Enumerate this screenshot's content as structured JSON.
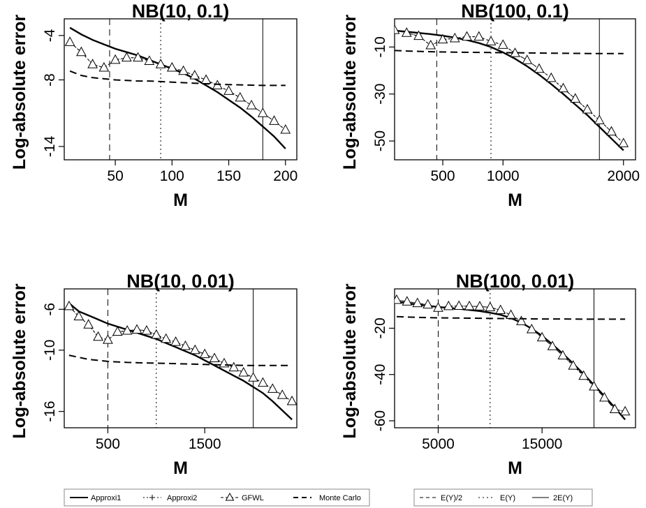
{
  "chart_data": [
    {
      "type": "line",
      "title": "NB(10, 0.1)",
      "xlabel": "M",
      "ylabel": "Log-absolute error",
      "xlim": [
        5,
        210
      ],
      "ylim": [
        -15.2,
        -2.5
      ],
      "xticks": [
        50,
        100,
        150,
        200
      ],
      "yticks": [
        -4,
        -8,
        -14
      ],
      "vlines": {
        "E(Y)/2": 45,
        "E(Y)": 90,
        "2E(Y)": 180
      },
      "series": [
        {
          "name": "Approxi1",
          "x": [
            10,
            20,
            30,
            40,
            50,
            60,
            70,
            80,
            90,
            100,
            110,
            120,
            130,
            140,
            150,
            160,
            170,
            180,
            190,
            200
          ],
          "values": [
            -3.3,
            -3.9,
            -4.4,
            -4.8,
            -5.2,
            -5.5,
            -5.8,
            -6.2,
            -6.6,
            -7.0,
            -7.4,
            -7.9,
            -8.5,
            -9.1,
            -9.8,
            -10.5,
            -11.3,
            -12.2,
            -13.1,
            -14.2
          ]
        },
        {
          "name": "Approxi2",
          "x": [
            10,
            20,
            30,
            40,
            50,
            60,
            70,
            80,
            90,
            100,
            110,
            120,
            130,
            140,
            150,
            160,
            170,
            180,
            190,
            200
          ],
          "values": [
            -4.6,
            -5.5,
            -6.6,
            -6.9,
            -6.2,
            -6.0,
            -6.0,
            -6.3,
            -6.6,
            -6.9,
            -7.2,
            -7.6,
            -8.0,
            -8.5,
            -9.0,
            -9.6,
            -10.3,
            -11.0,
            -11.7,
            -12.5
          ]
        },
        {
          "name": "GFWL",
          "x": [
            10,
            20,
            30,
            40,
            50,
            60,
            70,
            80,
            90,
            100,
            110,
            120,
            130,
            140,
            150,
            160,
            170,
            180,
            190,
            200
          ],
          "values": [
            -4.6,
            -5.5,
            -6.6,
            -6.9,
            -6.2,
            -6.0,
            -6.0,
            -6.3,
            -6.6,
            -6.9,
            -7.2,
            -7.6,
            -8.0,
            -8.5,
            -9.0,
            -9.6,
            -10.3,
            -11.0,
            -11.7,
            -12.5
          ]
        },
        {
          "name": "Monte Carlo",
          "x": [
            10,
            20,
            30,
            40,
            50,
            60,
            70,
            80,
            90,
            100,
            120,
            140,
            160,
            180,
            200
          ],
          "values": [
            -7.2,
            -7.6,
            -7.8,
            -7.9,
            -8.0,
            -8.05,
            -8.1,
            -8.1,
            -8.15,
            -8.2,
            -8.3,
            -8.4,
            -8.45,
            -8.5,
            -8.5
          ]
        }
      ]
    },
    {
      "type": "line",
      "title": "NB(100, 0.1)",
      "xlabel": "M",
      "ylabel": "Log-absolute error",
      "xlim": [
        100,
        2100
      ],
      "ylim": [
        -58,
        2
      ],
      "xticks": [
        500,
        1000,
        2000
      ],
      "yticks": [
        -10,
        -30,
        -50
      ],
      "vlines": {
        "E(Y)/2": 450,
        "E(Y)": 900,
        "2E(Y)": 1800
      },
      "series": [
        {
          "name": "Approxi1",
          "x": [
            100,
            200,
            300,
            400,
            500,
            600,
            700,
            800,
            900,
            1000,
            1100,
            1200,
            1300,
            1400,
            1500,
            1600,
            1700,
            1800,
            1900,
            2000
          ],
          "values": [
            -3.0,
            -3.5,
            -4.0,
            -4.5,
            -5.2,
            -6.0,
            -7.0,
            -8.3,
            -10.0,
            -12.3,
            -15.0,
            -18.2,
            -21.8,
            -25.8,
            -30.0,
            -34.5,
            -39.0,
            -44.0,
            -49.0,
            -54.0
          ]
        },
        {
          "name": "Approxi2",
          "x": [
            100,
            200,
            300,
            400,
            500,
            600,
            700,
            800,
            900,
            1000,
            1100,
            1200,
            1300,
            1400,
            1500,
            1600,
            1700,
            1800,
            1900,
            2000
          ],
          "values": [
            -2.8,
            -4.0,
            -5.3,
            -9.3,
            -6.8,
            -6.3,
            -5.6,
            -5.6,
            -7.6,
            -9.1,
            -12.6,
            -15.6,
            -19.3,
            -23.2,
            -27.6,
            -32.0,
            -36.6,
            -41.2,
            -46.0,
            -51.0
          ]
        },
        {
          "name": "GFWL",
          "x": [
            100,
            200,
            300,
            400,
            500,
            600,
            700,
            800,
            900,
            1000,
            1100,
            1200,
            1300,
            1400,
            1500,
            1600,
            1700,
            1800,
            1900,
            2000
          ],
          "values": [
            -2.8,
            -4.0,
            -5.3,
            -9.3,
            -6.8,
            -6.3,
            -5.6,
            -5.6,
            -7.6,
            -9.1,
            -12.6,
            -15.6,
            -19.3,
            -23.2,
            -27.6,
            -32.0,
            -36.6,
            -41.2,
            -46.0,
            -51.0
          ]
        },
        {
          "name": "Monte Carlo",
          "x": [
            100,
            200,
            400,
            600,
            800,
            1000,
            1200,
            1400,
            1600,
            1800,
            2000
          ],
          "values": [
            -11.5,
            -11.7,
            -12.0,
            -12.2,
            -12.3,
            -12.4,
            -12.5,
            -12.6,
            -12.7,
            -12.8,
            -12.8
          ]
        }
      ]
    },
    {
      "type": "line",
      "title": "NB(10, 0.01)",
      "xlabel": "M",
      "ylabel": "Log-absolute error",
      "xlim": [
        50,
        2450
      ],
      "ylim": [
        -17.6,
        -4.0
      ],
      "xticks": [
        500,
        1500
      ],
      "yticks": [
        -6,
        -10,
        -16
      ],
      "vlines": {
        "E(Y)/2": 500,
        "E(Y)": 1000,
        "2E(Y)": 2000
      },
      "series": [
        {
          "name": "Approxi1",
          "x": [
            100,
            200,
            300,
            400,
            500,
            600,
            700,
            800,
            900,
            1000,
            1100,
            1200,
            1300,
            1400,
            1500,
            1600,
            1700,
            1800,
            1900,
            2000,
            2100,
            2200,
            2300,
            2400
          ],
          "values": [
            -5.4,
            -6.2,
            -6.6,
            -7.0,
            -7.4,
            -7.7,
            -8.0,
            -8.3,
            -8.6,
            -8.9,
            -9.3,
            -9.7,
            -10.1,
            -10.5,
            -11.0,
            -11.5,
            -12.0,
            -12.5,
            -13.0,
            -13.6,
            -14.2,
            -15.0,
            -15.9,
            -16.8
          ]
        },
        {
          "name": "Approxi2",
          "x": [
            100,
            200,
            300,
            400,
            500,
            600,
            700,
            800,
            900,
            1000,
            1100,
            1200,
            1300,
            1400,
            1500,
            1600,
            1700,
            1800,
            1900,
            2000,
            2100,
            2200,
            2300,
            2400
          ],
          "values": [
            -5.7,
            -6.7,
            -7.5,
            -8.7,
            -9.0,
            -8.2,
            -8.1,
            -8.0,
            -8.1,
            -8.5,
            -8.9,
            -9.2,
            -9.6,
            -10.0,
            -10.4,
            -10.8,
            -11.3,
            -11.7,
            -12.2,
            -12.7,
            -13.2,
            -13.8,
            -14.4,
            -15.0
          ]
        },
        {
          "name": "GFWL",
          "x": [
            100,
            200,
            300,
            400,
            500,
            600,
            700,
            800,
            900,
            1000,
            1100,
            1200,
            1300,
            1400,
            1500,
            1600,
            1700,
            1800,
            1900,
            2000,
            2100,
            2200,
            2300,
            2400
          ],
          "values": [
            -5.7,
            -6.7,
            -7.5,
            -8.7,
            -9.0,
            -8.2,
            -8.1,
            -8.0,
            -8.1,
            -8.5,
            -8.9,
            -9.2,
            -9.6,
            -10.0,
            -10.4,
            -10.8,
            -11.3,
            -11.7,
            -12.2,
            -12.7,
            -13.2,
            -13.8,
            -14.4,
            -15.0
          ]
        },
        {
          "name": "Monte Carlo",
          "x": [
            100,
            300,
            500,
            700,
            900,
            1100,
            1300,
            1500,
            1700,
            1900,
            2100,
            2400
          ],
          "values": [
            -10.5,
            -10.9,
            -11.1,
            -11.2,
            -11.25,
            -11.3,
            -11.35,
            -11.4,
            -11.45,
            -11.5,
            -11.5,
            -11.5
          ]
        }
      ]
    },
    {
      "type": "line",
      "title": "NB(100, 0.01)",
      "xlabel": "M",
      "ylabel": "Log-absolute error",
      "xlim": [
        800,
        24000
      ],
      "ylim": [
        -63,
        -3
      ],
      "xticks": [
        5000,
        15000
      ],
      "yticks": [
        -20,
        -40,
        -60
      ],
      "vlines": {
        "E(Y)/2": 5000,
        "E(Y)": 10000,
        "2E(Y)": 20000
      },
      "series": [
        {
          "name": "Approxi1",
          "x": [
            1000,
            2000,
            3000,
            4000,
            5000,
            6000,
            7000,
            8000,
            9000,
            10000,
            11000,
            12000,
            13000,
            14000,
            15000,
            16000,
            17000,
            18000,
            19000,
            20000,
            21000,
            22000,
            23000
          ],
          "values": [
            -8.5,
            -9.2,
            -9.8,
            -10.3,
            -10.8,
            -11.2,
            -11.6,
            -12.1,
            -12.6,
            -13.3,
            -14.2,
            -15.6,
            -17.6,
            -20.2,
            -23.3,
            -27.0,
            -31.0,
            -35.3,
            -39.8,
            -44.5,
            -49.3,
            -54.3,
            -59.5
          ]
        },
        {
          "name": "Approxi2",
          "x": [
            1000,
            2000,
            3000,
            4000,
            5000,
            6000,
            7000,
            8000,
            9000,
            10000,
            11000,
            12000,
            13000,
            14000,
            15000,
            16000,
            17000,
            18000,
            19000,
            20000,
            21000,
            22000,
            23000
          ],
          "values": [
            -7.8,
            -8.5,
            -9.2,
            -9.8,
            -11.2,
            -10.5,
            -10.4,
            -10.5,
            -10.6,
            -11.0,
            -12.2,
            -14.3,
            -17.0,
            -20.5,
            -24.0,
            -27.8,
            -31.8,
            -36.2,
            -40.6,
            -45.2,
            -50.0,
            -55.0,
            -56.0
          ]
        },
        {
          "name": "GFWL",
          "x": [
            1000,
            2000,
            3000,
            4000,
            5000,
            6000,
            7000,
            8000,
            9000,
            10000,
            11000,
            12000,
            13000,
            14000,
            15000,
            16000,
            17000,
            18000,
            19000,
            20000,
            21000,
            22000,
            23000
          ],
          "values": [
            -7.8,
            -8.5,
            -9.2,
            -9.8,
            -11.2,
            -10.5,
            -10.4,
            -10.5,
            -10.6,
            -11.0,
            -12.2,
            -14.3,
            -17.0,
            -20.5,
            -24.0,
            -27.8,
            -31.8,
            -36.2,
            -40.6,
            -45.2,
            -50.0,
            -55.0,
            -56.0
          ]
        },
        {
          "name": "Monte Carlo",
          "x": [
            1000,
            3000,
            5000,
            7000,
            9000,
            11000,
            13000,
            15000,
            17000,
            19000,
            21000,
            23000
          ],
          "values": [
            -15.0,
            -15.3,
            -15.5,
            -15.6,
            -15.7,
            -15.8,
            -15.9,
            -16.0,
            -16.0,
            -16.1,
            -16.1,
            -16.1
          ]
        }
      ]
    }
  ],
  "legends": {
    "methods": [
      {
        "label": "Approxi1",
        "style": "solid"
      },
      {
        "label": "Approxi2",
        "style": "dotted-plus"
      },
      {
        "label": "GFWL",
        "style": "dashed-triangle"
      },
      {
        "label": "Monte Carlo",
        "style": "dashed"
      }
    ],
    "reference_lines": [
      {
        "label": "E(Y)/2",
        "style": "dashed"
      },
      {
        "label": "E(Y)",
        "style": "dotted"
      },
      {
        "label": "2E(Y)",
        "style": "solid"
      }
    ]
  },
  "colors": {
    "ink": "#000000",
    "background": "#ffffff"
  }
}
